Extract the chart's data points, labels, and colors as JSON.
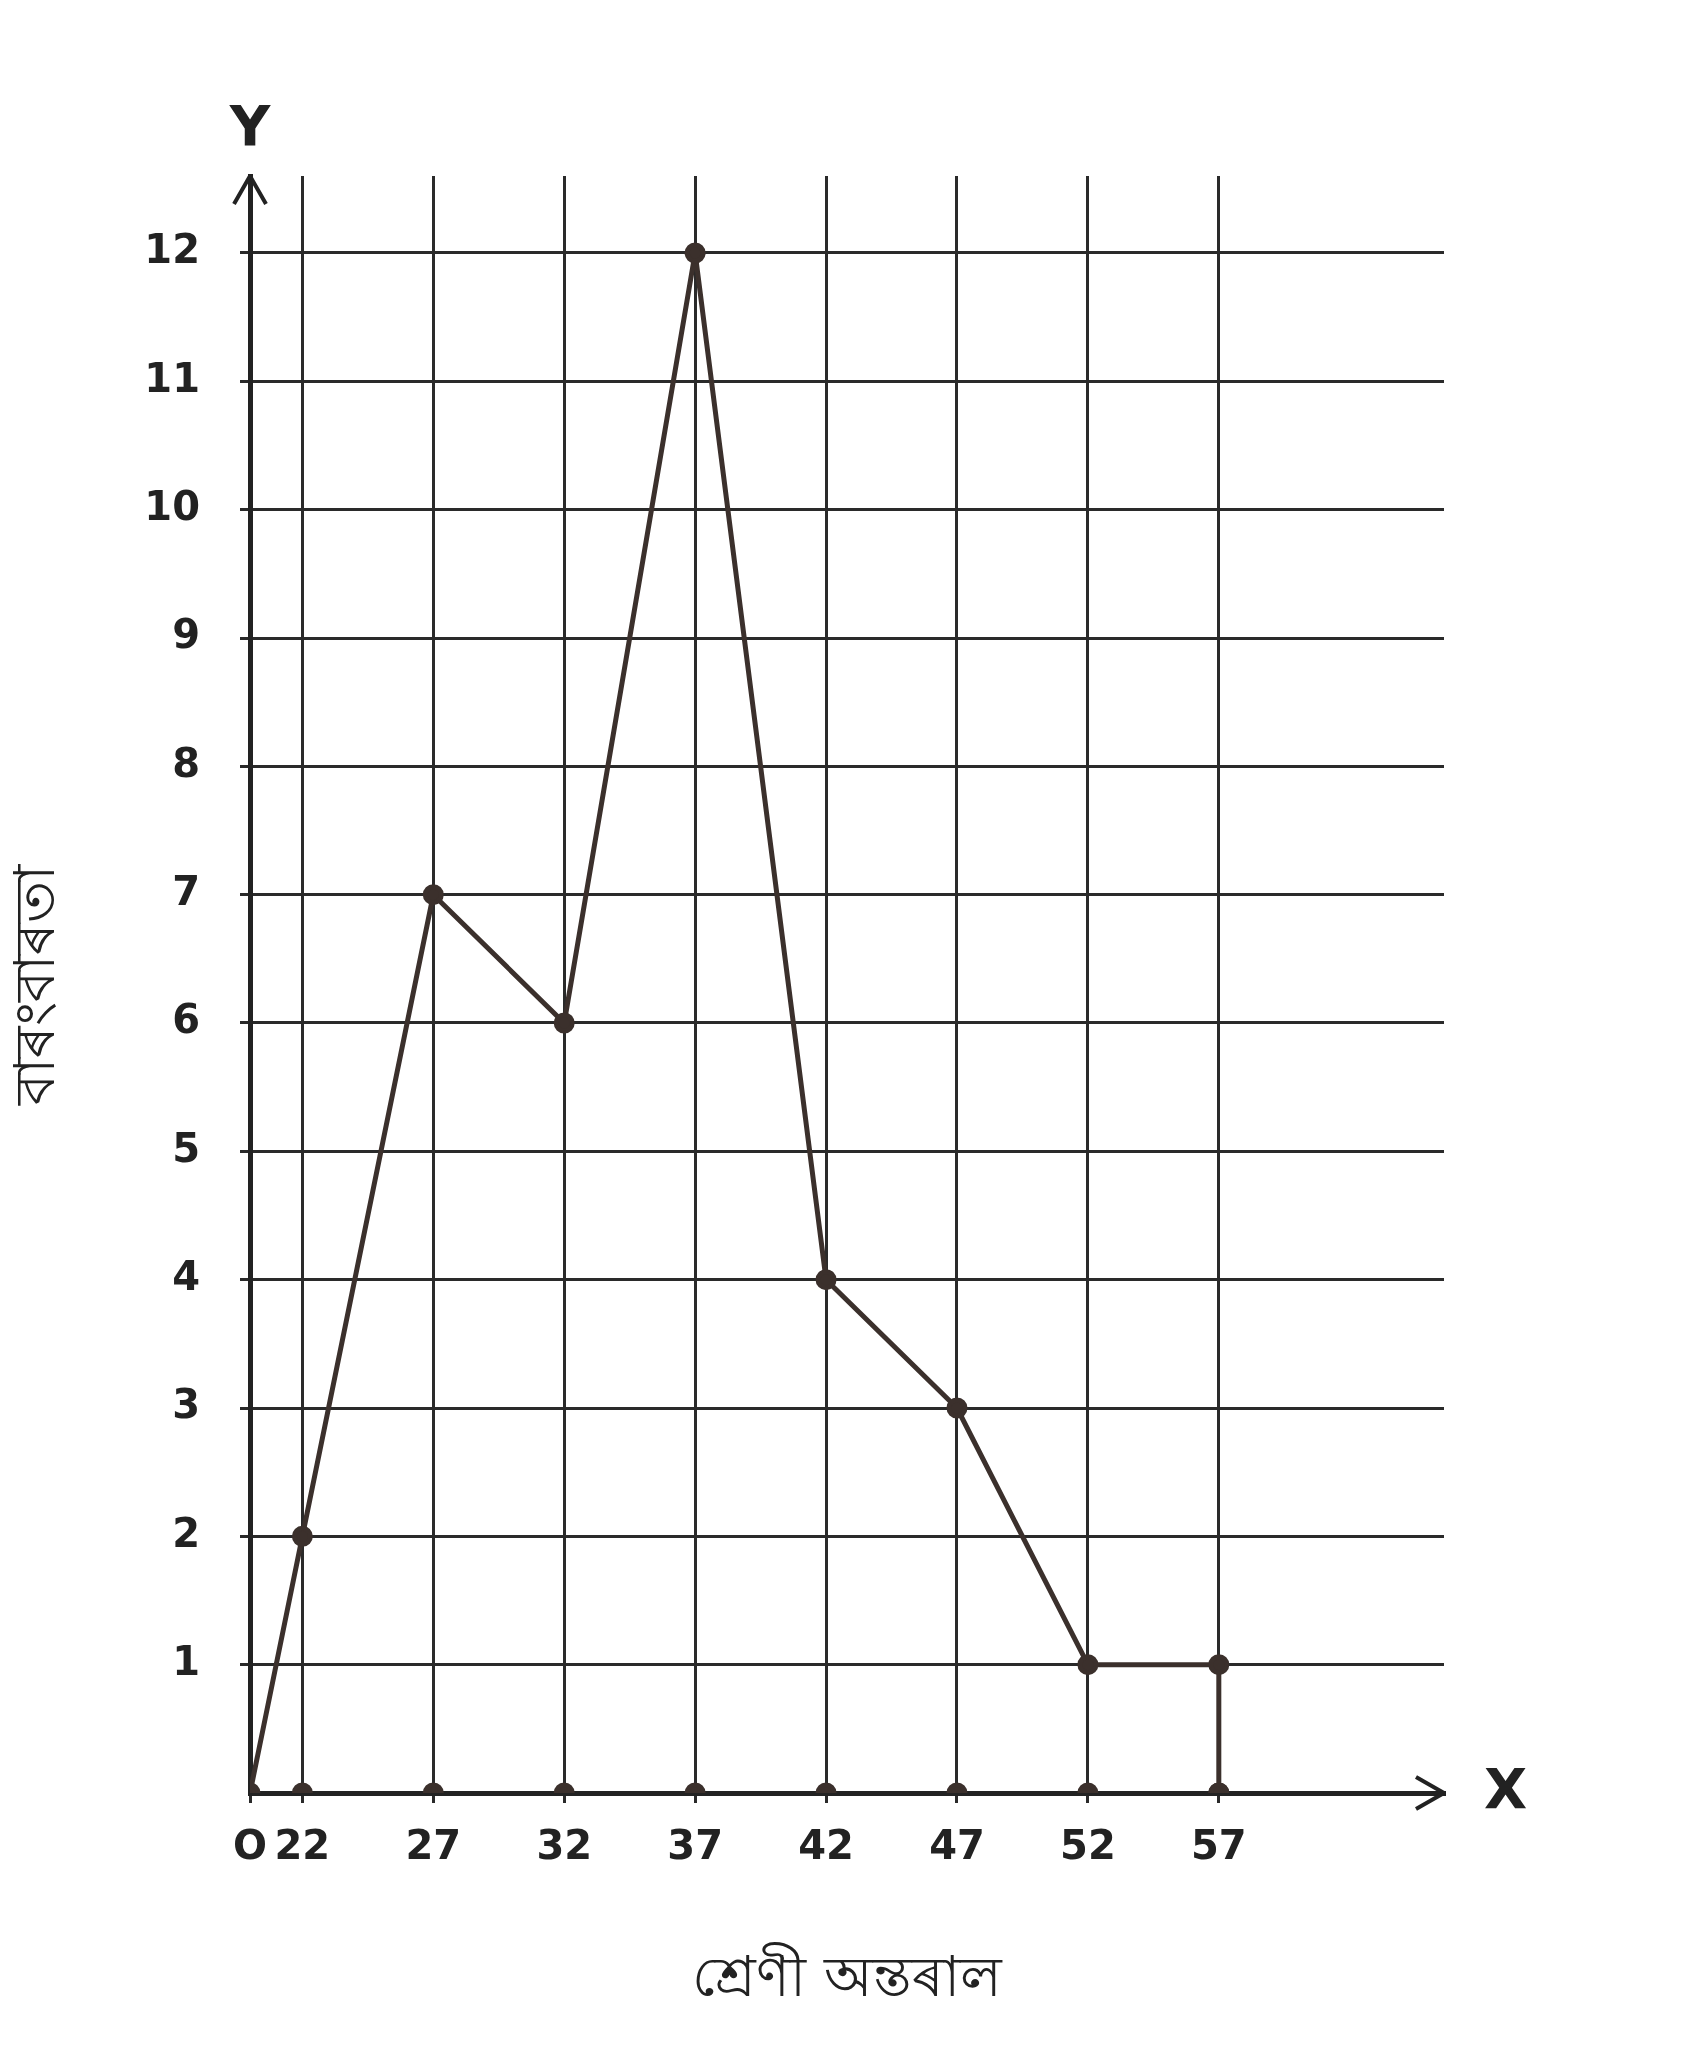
{
  "chart_data": {
    "type": "line",
    "xlabel": "শ্ৰেণী অন্তৰাল",
    "ylabel": "বাৰংবাৰতা",
    "xlim": [
      20,
      65.6
    ],
    "ylim": [
      0,
      12.6
    ],
    "xticks": [
      {
        "value": 20,
        "label": "O"
      },
      22,
      27,
      32,
      37,
      42,
      47,
      52,
      57
    ],
    "yticks": [
      1,
      2,
      3,
      4,
      5,
      6,
      7,
      8,
      9,
      10,
      11,
      12
    ],
    "grid": true,
    "marker": "circle",
    "line_style": "solid",
    "series": [
      {
        "color": "#3b302c",
        "x": [
          20,
          22,
          27,
          32,
          37,
          42,
          47,
          52,
          57,
          57
        ],
        "values": [
          0,
          2,
          7,
          6,
          12,
          4,
          3,
          1,
          1,
          0
        ]
      },
      {
        "type": "scatter",
        "color": "#3b302c",
        "x": [
          22,
          27,
          32,
          37,
          42,
          47,
          52,
          57
        ],
        "values": [
          0,
          0,
          0,
          0,
          0,
          0,
          0,
          0
        ]
      }
    ],
    "annotations": [
      "X",
      "Y"
    ]
  }
}
